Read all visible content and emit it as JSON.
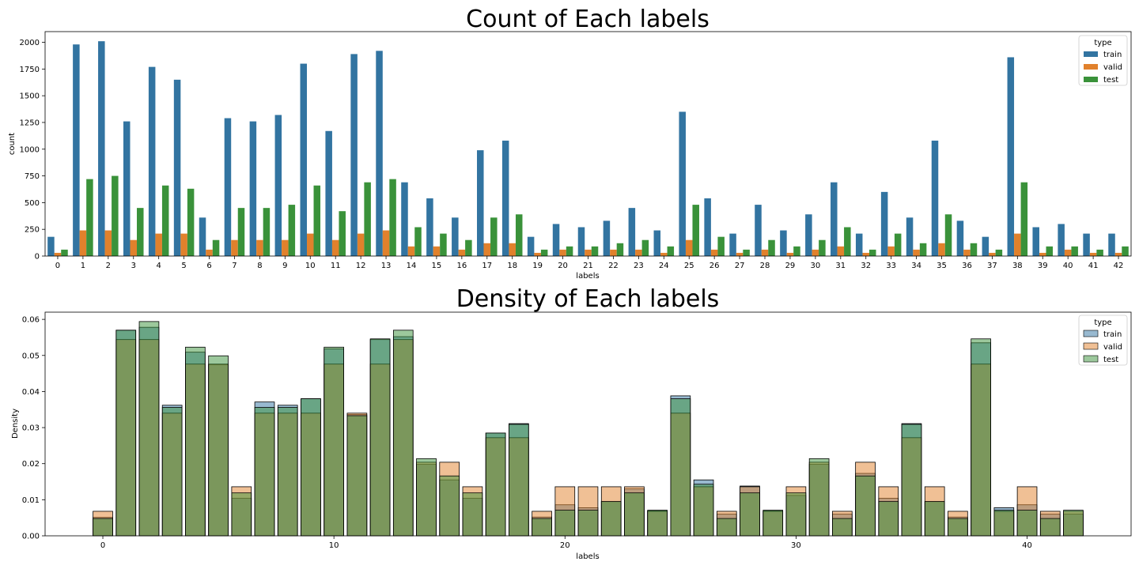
{
  "chart_data": [
    {
      "type": "bar",
      "title": "Count of Each labels",
      "xlabel": "labels",
      "ylabel": "count",
      "ylim": [
        0,
        2100
      ],
      "yticks": [
        0,
        250,
        500,
        750,
        1000,
        1250,
        1500,
        1750,
        2000
      ],
      "categories": [
        "0",
        "1",
        "2",
        "3",
        "4",
        "5",
        "6",
        "7",
        "8",
        "9",
        "10",
        "11",
        "12",
        "13",
        "14",
        "15",
        "16",
        "17",
        "18",
        "19",
        "20",
        "21",
        "22",
        "23",
        "24",
        "25",
        "26",
        "27",
        "28",
        "29",
        "30",
        "31",
        "32",
        "33",
        "34",
        "35",
        "36",
        "37",
        "38",
        "39",
        "40",
        "41",
        "42"
      ],
      "legend": {
        "title": "type",
        "position": "upper-right"
      },
      "series": [
        {
          "name": "train",
          "color": "#3274a1",
          "values": [
            180,
            1980,
            2010,
            1260,
            1770,
            1650,
            360,
            1290,
            1260,
            1320,
            1800,
            1170,
            1890,
            1920,
            690,
            540,
            360,
            990,
            1080,
            180,
            300,
            270,
            330,
            450,
            240,
            1350,
            540,
            210,
            480,
            240,
            390,
            690,
            210,
            600,
            360,
            1080,
            330,
            180,
            1860,
            270,
            300,
            210,
            210
          ]
        },
        {
          "name": "valid",
          "color": "#e1812c",
          "values": [
            30,
            240,
            240,
            150,
            210,
            210,
            60,
            150,
            150,
            150,
            210,
            150,
            210,
            240,
            90,
            90,
            60,
            120,
            120,
            30,
            60,
            60,
            60,
            60,
            30,
            150,
            60,
            30,
            60,
            30,
            60,
            90,
            30,
            90,
            60,
            120,
            60,
            30,
            210,
            30,
            60,
            30,
            30
          ]
        },
        {
          "name": "test",
          "color": "#3a923a",
          "values": [
            60,
            720,
            750,
            450,
            660,
            630,
            150,
            450,
            450,
            480,
            660,
            420,
            690,
            720,
            270,
            210,
            150,
            360,
            390,
            60,
            90,
            90,
            120,
            150,
            90,
            480,
            180,
            60,
            150,
            90,
            150,
            270,
            60,
            210,
            120,
            390,
            120,
            60,
            690,
            90,
            90,
            60,
            90
          ]
        }
      ]
    },
    {
      "type": "histogram",
      "title": "Density of Each labels",
      "xlabel": "labels",
      "ylabel": "Density",
      "ylim": [
        0,
        0.062
      ],
      "xlim": [
        -2.5,
        44.5
      ],
      "xticks": [
        0,
        10,
        20,
        30,
        40
      ],
      "yticks": [
        0.0,
        0.01,
        0.02,
        0.03,
        0.04,
        0.05,
        0.06
      ],
      "ytick_labels": [
        "0.00",
        "0.01",
        "0.02",
        "0.03",
        "0.04",
        "0.05",
        "0.06"
      ],
      "bins": [
        0,
        1,
        2,
        3,
        4,
        5,
        6,
        7,
        8,
        9,
        10,
        11,
        12,
        13,
        14,
        15,
        16,
        17,
        18,
        19,
        20,
        21,
        22,
        23,
        24,
        25,
        26,
        27,
        28,
        29,
        30,
        31,
        32,
        33,
        34,
        35,
        36,
        37,
        38,
        39,
        40,
        41,
        42
      ],
      "legend": {
        "title": "type",
        "position": "upper-right"
      },
      "series": [
        {
          "name": "train",
          "color": "#3274a1",
          "values": [
            0.0051,
            0.057,
            0.0578,
            0.0362,
            0.0509,
            0.0474,
            0.0104,
            0.0371,
            0.0362,
            0.038,
            0.0518,
            0.0336,
            0.0544,
            0.0552,
            0.0198,
            0.0155,
            0.0104,
            0.0285,
            0.0311,
            0.0052,
            0.0086,
            0.0078,
            0.0095,
            0.013,
            0.0069,
            0.0388,
            0.0155,
            0.006,
            0.0138,
            0.0069,
            0.0112,
            0.0198,
            0.006,
            0.0173,
            0.0104,
            0.0311,
            0.0095,
            0.0052,
            0.0535,
            0.0078,
            0.0086,
            0.006,
            0.006
          ]
        },
        {
          "name": "valid",
          "color": "#e1812c",
          "values": [
            0.0068,
            0.0544,
            0.0544,
            0.034,
            0.0476,
            0.0476,
            0.0136,
            0.034,
            0.034,
            0.034,
            0.0476,
            0.034,
            0.0476,
            0.0544,
            0.0204,
            0.0204,
            0.0136,
            0.0272,
            0.0272,
            0.0068,
            0.0136,
            0.0136,
            0.0136,
            0.0136,
            0.0068,
            0.034,
            0.0136,
            0.0068,
            0.0136,
            0.0068,
            0.0136,
            0.0204,
            0.0068,
            0.0204,
            0.0136,
            0.0272,
            0.0136,
            0.0068,
            0.0476,
            0.0068,
            0.0136,
            0.0068,
            0.0068
          ]
        },
        {
          "name": "test",
          "color": "#3a923a",
          "values": [
            0.0048,
            0.057,
            0.0594,
            0.0356,
            0.0523,
            0.0499,
            0.0119,
            0.0356,
            0.0356,
            0.038,
            0.0523,
            0.0333,
            0.0546,
            0.057,
            0.0214,
            0.0166,
            0.0119,
            0.0285,
            0.0309,
            0.0048,
            0.0071,
            0.0071,
            0.0095,
            0.0119,
            0.0071,
            0.038,
            0.0143,
            0.0048,
            0.0119,
            0.0071,
            0.0119,
            0.0214,
            0.0048,
            0.0166,
            0.0095,
            0.0309,
            0.0095,
            0.0048,
            0.0546,
            0.0071,
            0.0071,
            0.0048,
            0.0071
          ]
        }
      ]
    }
  ]
}
